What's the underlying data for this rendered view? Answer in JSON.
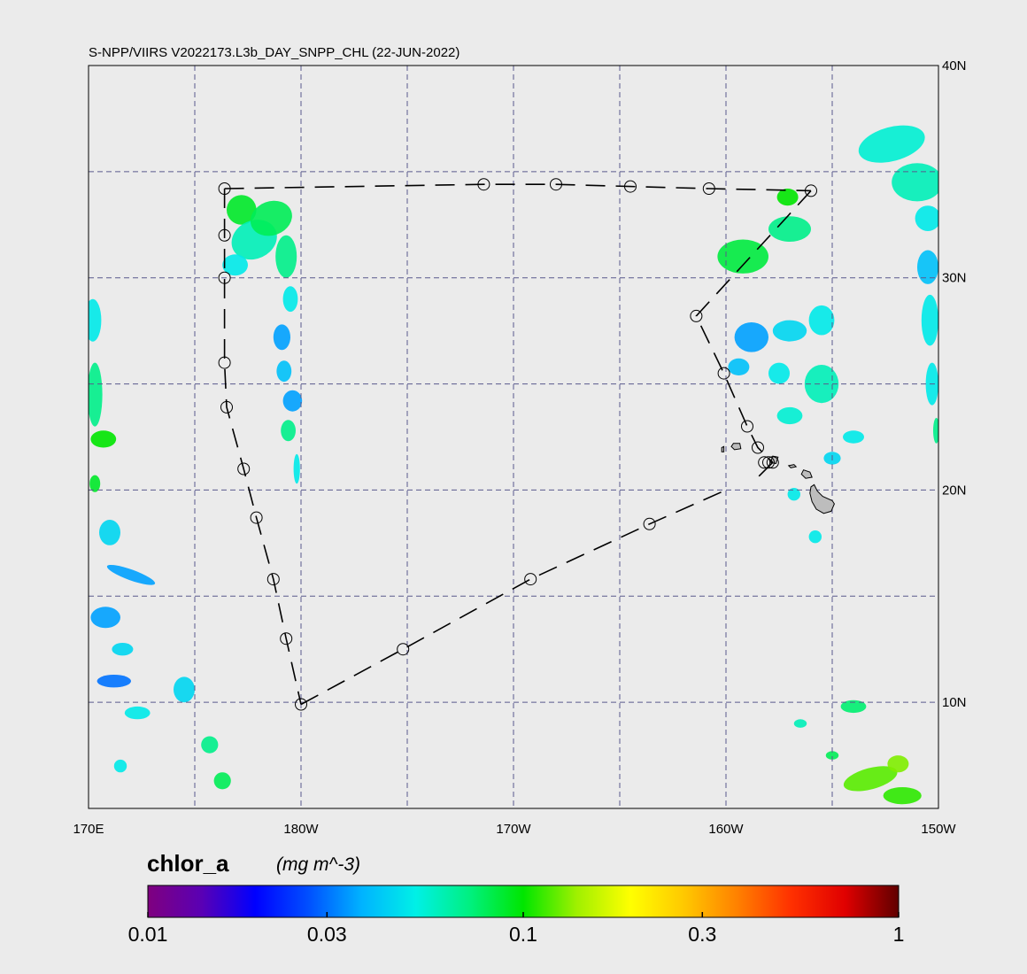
{
  "title": "S-NPP/VIIRS V2022173.L3b_DAY_SNPP_CHL (22-JUN-2022)",
  "map": {
    "lon_range": [
      170,
      210
    ],
    "lat_range": [
      5,
      40
    ],
    "background": "#ebebeb",
    "frame_color": "#000000",
    "grid_color": "#5a5a8c",
    "grid_lons": [
      175,
      180,
      185,
      190,
      195,
      200,
      205
    ],
    "grid_lats": [
      10,
      15,
      20,
      25,
      30,
      35
    ],
    "lat_ticks": [
      {
        "lat": 40,
        "label": "40N"
      },
      {
        "lat": 30,
        "label": "30N"
      },
      {
        "lat": 20,
        "label": "20N"
      },
      {
        "lat": 10,
        "label": "10N"
      }
    ],
    "lon_ticks": [
      {
        "lon": 170,
        "label": "170E"
      },
      {
        "lon": 180,
        "label": "180W"
      },
      {
        "lon": 190,
        "label": "170W"
      },
      {
        "lon": 200,
        "label": "160W"
      },
      {
        "lon": 210,
        "label": "150W"
      }
    ]
  },
  "track": {
    "stations": [
      [
        176.4,
        34.2
      ],
      [
        176.4,
        32.0
      ],
      [
        176.4,
        30.0
      ],
      [
        176.4,
        26.0
      ],
      [
        176.5,
        23.9
      ],
      [
        177.3,
        21.0
      ],
      [
        177.9,
        18.7
      ],
      [
        178.7,
        15.8
      ],
      [
        179.3,
        13.0
      ],
      [
        180.0,
        9.9
      ],
      [
        184.8,
        12.5
      ],
      [
        190.8,
        15.8
      ],
      [
        196.4,
        18.4
      ],
      [
        204.0,
        34.1
      ],
      [
        199.2,
        34.2
      ],
      [
        195.5,
        34.3
      ],
      [
        192.0,
        34.4
      ],
      [
        188.6,
        34.4
      ],
      [
        198.6,
        28.2
      ],
      [
        199.9,
        25.5
      ],
      [
        201.0,
        23.0
      ],
      [
        201.5,
        22.0
      ],
      [
        201.8,
        21.3
      ],
      [
        202.0,
        21.3
      ],
      [
        202.2,
        21.3
      ]
    ],
    "path": [
      [
        180.0,
        9.9
      ],
      [
        184.8,
        12.5
      ],
      [
        190.8,
        15.8
      ],
      [
        196.4,
        18.4
      ],
      [
        200.0,
        20.0
      ]
    ],
    "path_west": [
      [
        176.4,
        34.2
      ],
      [
        176.4,
        30.0
      ],
      [
        176.4,
        26.0
      ],
      [
        176.5,
        23.9
      ],
      [
        177.3,
        21.0
      ],
      [
        177.9,
        18.7
      ],
      [
        178.7,
        15.8
      ],
      [
        179.3,
        13.0
      ],
      [
        180.0,
        9.9
      ]
    ],
    "path_north": [
      [
        176.4,
        34.2
      ],
      [
        188.6,
        34.4
      ],
      [
        192.0,
        34.4
      ],
      [
        195.5,
        34.3
      ],
      [
        199.2,
        34.2
      ],
      [
        204.0,
        34.1
      ]
    ],
    "path_east": [
      [
        204.0,
        34.1
      ],
      [
        198.6,
        28.2
      ],
      [
        199.9,
        25.5
      ],
      [
        201.0,
        23.0
      ],
      [
        201.5,
        22.0
      ],
      [
        202.2,
        21.3
      ]
    ],
    "path_return": [
      [
        202.2,
        21.3
      ],
      [
        201.4,
        20.5
      ]
    ],
    "color": "#000000"
  },
  "islands": {
    "fill": "#bdbdbd",
    "stroke": "#000000",
    "shapes": [
      [
        [
          204.15,
          20.25
        ],
        [
          204.3,
          19.95
        ],
        [
          204.55,
          19.7
        ],
        [
          205.0,
          19.5
        ],
        [
          205.1,
          19.35
        ],
        [
          204.95,
          19.0
        ],
        [
          204.6,
          18.9
        ],
        [
          204.25,
          19.1
        ],
        [
          204.05,
          19.45
        ],
        [
          203.95,
          19.85
        ],
        [
          204.0,
          20.15
        ]
      ],
      [
        [
          203.65,
          20.95
        ],
        [
          203.95,
          20.85
        ],
        [
          204.05,
          20.6
        ],
        [
          203.75,
          20.55
        ],
        [
          203.55,
          20.75
        ]
      ],
      [
        [
          202.95,
          21.15
        ],
        [
          203.2,
          21.2
        ],
        [
          203.3,
          21.1
        ],
        [
          203.05,
          21.05
        ]
      ],
      [
        [
          202.2,
          21.6
        ],
        [
          202.45,
          21.55
        ],
        [
          202.35,
          21.25
        ],
        [
          202.1,
          21.3
        ]
      ],
      [
        [
          200.35,
          22.2
        ],
        [
          200.65,
          22.2
        ],
        [
          200.7,
          21.95
        ],
        [
          200.4,
          21.9
        ],
        [
          200.25,
          22.05
        ]
      ],
      [
        [
          199.8,
          22.0
        ],
        [
          199.9,
          22.05
        ],
        [
          199.9,
          21.8
        ],
        [
          199.8,
          21.8
        ]
      ]
    ]
  },
  "chlor_patches": [
    {
      "lon": 177.2,
      "lat": 33.2,
      "rx": 0.7,
      "ry": 0.7,
      "rot": 0,
      "val": 0.09
    },
    {
      "lon": 177.8,
      "lat": 31.8,
      "rx": 1.1,
      "ry": 0.9,
      "rot": -25,
      "val": 0.06
    },
    {
      "lon": 178.6,
      "lat": 32.8,
      "rx": 1.0,
      "ry": 0.8,
      "rot": -20,
      "val": 0.08
    },
    {
      "lon": 176.9,
      "lat": 30.6,
      "rx": 0.6,
      "ry": 0.5,
      "rot": 0,
      "val": 0.05
    },
    {
      "lon": 179.3,
      "lat": 31.0,
      "rx": 0.5,
      "ry": 1.0,
      "rot": 0,
      "val": 0.07
    },
    {
      "lon": 179.5,
      "lat": 29.0,
      "rx": 0.35,
      "ry": 0.6,
      "rot": 0,
      "val": 0.05
    },
    {
      "lon": 179.1,
      "lat": 27.2,
      "rx": 0.4,
      "ry": 0.6,
      "rot": 0,
      "val": 0.035
    },
    {
      "lon": 179.6,
      "lat": 24.2,
      "rx": 0.45,
      "ry": 0.5,
      "rot": 0,
      "val": 0.035
    },
    {
      "lon": 179.4,
      "lat": 22.8,
      "rx": 0.35,
      "ry": 0.5,
      "rot": 0,
      "val": 0.07
    },
    {
      "lon": 179.8,
      "lat": 21.0,
      "rx": 0.15,
      "ry": 0.7,
      "rot": 0,
      "val": 0.05
    },
    {
      "lon": 179.2,
      "lat": 25.6,
      "rx": 0.35,
      "ry": 0.5,
      "rot": 0,
      "val": 0.04
    },
    {
      "lon": 170.2,
      "lat": 28.0,
      "rx": 0.4,
      "ry": 1.0,
      "rot": 0,
      "val": 0.05
    },
    {
      "lon": 170.3,
      "lat": 24.5,
      "rx": 0.35,
      "ry": 1.5,
      "rot": 0,
      "val": 0.07
    },
    {
      "lon": 170.7,
      "lat": 22.4,
      "rx": 0.6,
      "ry": 0.4,
      "rot": 0,
      "val": 0.1
    },
    {
      "lon": 170.3,
      "lat": 20.3,
      "rx": 0.25,
      "ry": 0.4,
      "rot": 0,
      "val": 0.09
    },
    {
      "lon": 171.0,
      "lat": 18.0,
      "rx": 0.5,
      "ry": 0.6,
      "rot": 0,
      "val": 0.045
    },
    {
      "lon": 172.0,
      "lat": 16.0,
      "rx": 1.2,
      "ry": 0.25,
      "rot": 20,
      "val": 0.035
    },
    {
      "lon": 170.8,
      "lat": 14.0,
      "rx": 0.7,
      "ry": 0.5,
      "rot": 0,
      "val": 0.035
    },
    {
      "lon": 171.6,
      "lat": 12.5,
      "rx": 0.5,
      "ry": 0.3,
      "rot": 0,
      "val": 0.045
    },
    {
      "lon": 171.2,
      "lat": 11.0,
      "rx": 0.8,
      "ry": 0.3,
      "rot": 0,
      "val": 0.03
    },
    {
      "lon": 174.5,
      "lat": 10.6,
      "rx": 0.5,
      "ry": 0.6,
      "rot": 0,
      "val": 0.045
    },
    {
      "lon": 172.3,
      "lat": 9.5,
      "rx": 0.6,
      "ry": 0.3,
      "rot": 0,
      "val": 0.05
    },
    {
      "lon": 175.7,
      "lat": 8.0,
      "rx": 0.4,
      "ry": 0.4,
      "rot": 0,
      "val": 0.07
    },
    {
      "lon": 176.3,
      "lat": 6.3,
      "rx": 0.4,
      "ry": 0.4,
      "rot": 0,
      "val": 0.08
    },
    {
      "lon": 171.5,
      "lat": 7.0,
      "rx": 0.3,
      "ry": 0.3,
      "rot": 0,
      "val": 0.05
    },
    {
      "lon": 200.8,
      "lat": 31.0,
      "rx": 1.2,
      "ry": 0.8,
      "rot": 0,
      "val": 0.085
    },
    {
      "lon": 203.0,
      "lat": 32.3,
      "rx": 1.0,
      "ry": 0.6,
      "rot": 0,
      "val": 0.07
    },
    {
      "lon": 202.9,
      "lat": 33.8,
      "rx": 0.5,
      "ry": 0.4,
      "rot": 0,
      "val": 0.1
    },
    {
      "lon": 201.2,
      "lat": 27.2,
      "rx": 0.8,
      "ry": 0.7,
      "rot": 0,
      "val": 0.035
    },
    {
      "lon": 203.0,
      "lat": 27.5,
      "rx": 0.8,
      "ry": 0.5,
      "rot": 0,
      "val": 0.045
    },
    {
      "lon": 204.5,
      "lat": 28.0,
      "rx": 0.6,
      "ry": 0.7,
      "rot": 0,
      "val": 0.05
    },
    {
      "lon": 200.6,
      "lat": 25.8,
      "rx": 0.5,
      "ry": 0.4,
      "rot": 0,
      "val": 0.04
    },
    {
      "lon": 202.5,
      "lat": 25.5,
      "rx": 0.5,
      "ry": 0.5,
      "rot": 0,
      "val": 0.05
    },
    {
      "lon": 203.0,
      "lat": 23.5,
      "rx": 0.6,
      "ry": 0.4,
      "rot": 0,
      "val": 0.055
    },
    {
      "lon": 204.5,
      "lat": 25.0,
      "rx": 0.8,
      "ry": 0.9,
      "rot": 0,
      "val": 0.06
    },
    {
      "lon": 206.0,
      "lat": 22.5,
      "rx": 0.5,
      "ry": 0.3,
      "rot": 0,
      "val": 0.05
    },
    {
      "lon": 205.0,
      "lat": 21.5,
      "rx": 0.4,
      "ry": 0.3,
      "rot": 0,
      "val": 0.045
    },
    {
      "lon": 203.2,
      "lat": 19.8,
      "rx": 0.3,
      "ry": 0.3,
      "rot": 0,
      "val": 0.05
    },
    {
      "lon": 204.2,
      "lat": 17.8,
      "rx": 0.3,
      "ry": 0.3,
      "rot": 0,
      "val": 0.05
    },
    {
      "lon": 207.8,
      "lat": 36.3,
      "rx": 1.6,
      "ry": 0.8,
      "rot": -15,
      "val": 0.055
    },
    {
      "lon": 209.0,
      "lat": 34.5,
      "rx": 1.2,
      "ry": 0.9,
      "rot": 0,
      "val": 0.06
    },
    {
      "lon": 209.5,
      "lat": 32.8,
      "rx": 0.6,
      "ry": 0.6,
      "rot": 0,
      "val": 0.05
    },
    {
      "lon": 209.5,
      "lat": 30.5,
      "rx": 0.5,
      "ry": 0.8,
      "rot": 0,
      "val": 0.04
    },
    {
      "lon": 209.6,
      "lat": 28.0,
      "rx": 0.4,
      "ry": 1.2,
      "rot": 0,
      "val": 0.05
    },
    {
      "lon": 209.7,
      "lat": 25.0,
      "rx": 0.3,
      "ry": 1.0,
      "rot": 0,
      "val": 0.05
    },
    {
      "lon": 209.9,
      "lat": 22.8,
      "rx": 0.15,
      "ry": 0.6,
      "rot": 0,
      "val": 0.07
    },
    {
      "lon": 206.8,
      "lat": 6.4,
      "rx": 1.3,
      "ry": 0.5,
      "rot": -15,
      "val": 0.12
    },
    {
      "lon": 208.1,
      "lat": 7.1,
      "rx": 0.5,
      "ry": 0.4,
      "rot": 0,
      "val": 0.13
    },
    {
      "lon": 208.3,
      "lat": 5.6,
      "rx": 0.9,
      "ry": 0.4,
      "rot": 0,
      "val": 0.11
    },
    {
      "lon": 206.0,
      "lat": 9.8,
      "rx": 0.6,
      "ry": 0.3,
      "rot": 0,
      "val": 0.075
    },
    {
      "lon": 203.5,
      "lat": 9.0,
      "rx": 0.3,
      "ry": 0.2,
      "rot": 0,
      "val": 0.06
    },
    {
      "lon": 205.0,
      "lat": 7.5,
      "rx": 0.3,
      "ry": 0.2,
      "rot": 0,
      "val": 0.08
    }
  ],
  "colorbar": {
    "variable": "chlor_a",
    "units": "(mg m^-3)",
    "min": 0.01,
    "max": 1,
    "scale": "log",
    "ticks": [
      {
        "value": 0.01,
        "label": "0.01"
      },
      {
        "value": 0.03,
        "label": "0.03"
      },
      {
        "value": 0.1,
        "label": "0.1"
      },
      {
        "value": 0.3,
        "label": "0.3"
      },
      {
        "value": 1,
        "label": "1"
      }
    ],
    "colors": [
      "#7f007f",
      "#5a00b4",
      "#0000ff",
      "#0050ff",
      "#00b4ff",
      "#00f0e6",
      "#00f080",
      "#00e600",
      "#a0f000",
      "#ffff00",
      "#ffc800",
      "#ff8000",
      "#ff3000",
      "#e00000",
      "#600000"
    ]
  }
}
